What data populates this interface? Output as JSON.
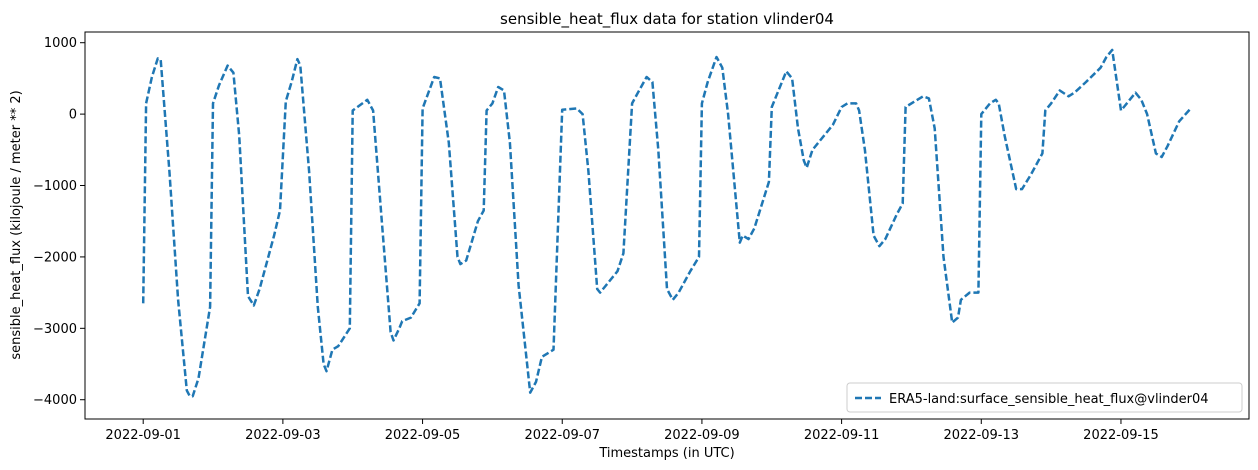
{
  "chart_data": {
    "type": "line",
    "title": "sensible_heat_flux data for station vlinder04",
    "xlabel": "Timestamps (in UTC)",
    "ylabel": "sensible_heat_flux (kilojoule / meter ** 2)",
    "x_ticks": [
      "2022-09-01",
      "2022-09-03",
      "2022-09-05",
      "2022-09-07",
      "2022-09-09",
      "2022-09-11",
      "2022-09-13",
      "2022-09-15"
    ],
    "xlim": [
      "2022-08-31 04:00",
      "2022-09-16 20:00"
    ],
    "y_ticks": [
      1000,
      0,
      -1000,
      -2000,
      -3000,
      -4000
    ],
    "ylim": [
      -4270,
      1150
    ],
    "grid": false,
    "legend_position": "lower-right",
    "series": [
      {
        "name": "ERA5-land:surface_sensible_heat_flux@vlinder04",
        "color": "#1f77b4",
        "linestyle": "dashed",
        "points": [
          [
            "2022-09-01 00:00",
            -2650
          ],
          [
            "2022-09-01 01:00",
            150
          ],
          [
            "2022-09-01 03:00",
            520
          ],
          [
            "2022-09-01 05:00",
            780
          ],
          [
            "2022-09-01 06:00",
            760
          ],
          [
            "2022-09-01 09:00",
            -800
          ],
          [
            "2022-09-01 12:00",
            -2600
          ],
          [
            "2022-09-01 15:00",
            -3870
          ],
          [
            "2022-09-01 16:00",
            -3950
          ],
          [
            "2022-09-01 17:00",
            -3950
          ],
          [
            "2022-09-01 19:00",
            -3700
          ],
          [
            "2022-09-01 23:00",
            -2700
          ],
          [
            "2022-09-02 00:00",
            150
          ],
          [
            "2022-09-02 02:00",
            400
          ],
          [
            "2022-09-02 05:00",
            680
          ],
          [
            "2022-09-02 07:00",
            580
          ],
          [
            "2022-09-02 09:00",
            -300
          ],
          [
            "2022-09-02 12:00",
            -2550
          ],
          [
            "2022-09-02 14:00",
            -2680
          ],
          [
            "2022-09-02 16:00",
            -2450
          ],
          [
            "2022-09-02 21:00",
            -1700
          ],
          [
            "2022-09-02 23:00",
            -1350
          ],
          [
            "2022-09-03 01:00",
            180
          ],
          [
            "2022-09-03 03:00",
            450
          ],
          [
            "2022-09-03 05:00",
            770
          ],
          [
            "2022-09-03 06:00",
            680
          ],
          [
            "2022-09-03 09:00",
            -800
          ],
          [
            "2022-09-03 12:00",
            -2700
          ],
          [
            "2022-09-03 14:00",
            -3500
          ],
          [
            "2022-09-03 15:00",
            -3600
          ],
          [
            "2022-09-03 17:00",
            -3300
          ],
          [
            "2022-09-03 19:00",
            -3250
          ],
          [
            "2022-09-03 23:00",
            -3000
          ],
          [
            "2022-09-04 00:00",
            50
          ],
          [
            "2022-09-04 05:00",
            200
          ],
          [
            "2022-09-04 07:00",
            50
          ],
          [
            "2022-09-04 10:00",
            -1500
          ],
          [
            "2022-09-04 13:00",
            -3050
          ],
          [
            "2022-09-04 14:00",
            -3170
          ],
          [
            "2022-09-04 16:00",
            -3000
          ],
          [
            "2022-09-04 17:00",
            -2900
          ],
          [
            "2022-09-04 20:00",
            -2850
          ],
          [
            "2022-09-04 23:00",
            -2650
          ],
          [
            "2022-09-05 00:00",
            80
          ],
          [
            "2022-09-05 02:00",
            300
          ],
          [
            "2022-09-05 04:00",
            520
          ],
          [
            "2022-09-05 06:00",
            500
          ],
          [
            "2022-09-05 09:00",
            -400
          ],
          [
            "2022-09-05 12:00",
            -2000
          ],
          [
            "2022-09-05 13:00",
            -2100
          ],
          [
            "2022-09-05 15:00",
            -2050
          ],
          [
            "2022-09-05 19:00",
            -1500
          ],
          [
            "2022-09-05 21:00",
            -1350
          ],
          [
            "2022-09-05 22:00",
            50
          ],
          [
            "2022-09-06 00:00",
            150
          ],
          [
            "2022-09-06 02:00",
            380
          ],
          [
            "2022-09-06 04:00",
            330
          ],
          [
            "2022-09-06 06:00",
            -400
          ],
          [
            "2022-09-06 09:00",
            -2400
          ],
          [
            "2022-09-06 13:00",
            -3900
          ],
          [
            "2022-09-06 15:00",
            -3750
          ],
          [
            "2022-09-06 17:00",
            -3400
          ],
          [
            "2022-09-06 21:00",
            -3300
          ],
          [
            "2022-09-07 00:00",
            60
          ],
          [
            "2022-09-07 05:00",
            80
          ],
          [
            "2022-09-07 07:00",
            0
          ],
          [
            "2022-09-07 09:00",
            -800
          ],
          [
            "2022-09-07 12:00",
            -2450
          ],
          [
            "2022-09-07 13:00",
            -2500
          ],
          [
            "2022-09-07 15:00",
            -2400
          ],
          [
            "2022-09-07 19:00",
            -2200
          ],
          [
            "2022-09-07 21:00",
            -1950
          ],
          [
            "2022-09-08 00:00",
            150
          ],
          [
            "2022-09-08 02:00",
            300
          ],
          [
            "2022-09-08 05:00",
            520
          ],
          [
            "2022-09-08 07:00",
            450
          ],
          [
            "2022-09-08 09:00",
            -500
          ],
          [
            "2022-09-08 12:00",
            -2450
          ],
          [
            "2022-09-08 14:00",
            -2600
          ],
          [
            "2022-09-08 16:00",
            -2500
          ],
          [
            "2022-09-08 20:00",
            -2200
          ],
          [
            "2022-09-08 23:00",
            -2000
          ],
          [
            "2022-09-09 00:00",
            150
          ],
          [
            "2022-09-09 02:00",
            450
          ],
          [
            "2022-09-09 05:00",
            800
          ],
          [
            "2022-09-09 07:00",
            650
          ],
          [
            "2022-09-09 09:00",
            0
          ],
          [
            "2022-09-09 13:00",
            -1800
          ],
          [
            "2022-09-09 14:00",
            -1700
          ],
          [
            "2022-09-09 16:00",
            -1750
          ],
          [
            "2022-09-09 18:00",
            -1600
          ],
          [
            "2022-09-09 23:00",
            -950
          ],
          [
            "2022-09-10 00:00",
            100
          ],
          [
            "2022-09-10 02:00",
            300
          ],
          [
            "2022-09-10 05:00",
            600
          ],
          [
            "2022-09-10 07:00",
            500
          ],
          [
            "2022-09-10 09:00",
            -200
          ],
          [
            "2022-09-10 11:00",
            -650
          ],
          [
            "2022-09-10 12:00",
            -750
          ],
          [
            "2022-09-10 14:00",
            -500
          ],
          [
            "2022-09-10 16:00",
            -400
          ],
          [
            "2022-09-10 21:00",
            -150
          ],
          [
            "2022-09-11 00:00",
            100
          ],
          [
            "2022-09-11 02:00",
            150
          ],
          [
            "2022-09-11 05:00",
            150
          ],
          [
            "2022-09-11 06:00",
            50
          ],
          [
            "2022-09-11 08:00",
            -500
          ],
          [
            "2022-09-11 11:00",
            -1700
          ],
          [
            "2022-09-11 13:00",
            -1850
          ],
          [
            "2022-09-11 15:00",
            -1750
          ],
          [
            "2022-09-11 19:00",
            -1400
          ],
          [
            "2022-09-11 21:00",
            -1250
          ],
          [
            "2022-09-11 22:00",
            100
          ],
          [
            "2022-09-12 02:00",
            200
          ],
          [
            "2022-09-12 04:00",
            250
          ],
          [
            "2022-09-12 06:00",
            220
          ],
          [
            "2022-09-12 08:00",
            -200
          ],
          [
            "2022-09-12 11:00",
            -2000
          ],
          [
            "2022-09-12 14:00",
            -2920
          ],
          [
            "2022-09-12 16:00",
            -2850
          ],
          [
            "2022-09-12 17:00",
            -2600
          ],
          [
            "2022-09-12 20:00",
            -2500
          ],
          [
            "2022-09-12 23:00",
            -2500
          ],
          [
            "2022-09-13 00:00",
            0
          ],
          [
            "2022-09-13 03:00",
            150
          ],
          [
            "2022-09-13 05:00",
            200
          ],
          [
            "2022-09-13 06:00",
            150
          ],
          [
            "2022-09-13 08:00",
            -300
          ],
          [
            "2022-09-13 12:00",
            -1050
          ],
          [
            "2022-09-13 14:00",
            -1050
          ],
          [
            "2022-09-13 17:00",
            -850
          ],
          [
            "2022-09-13 21:00",
            -550
          ],
          [
            "2022-09-13 22:00",
            50
          ],
          [
            "2022-09-14 00:00",
            150
          ],
          [
            "2022-09-14 03:00",
            330
          ],
          [
            "2022-09-14 06:00",
            250
          ],
          [
            "2022-09-14 08:00",
            300
          ],
          [
            "2022-09-14 12:00",
            450
          ],
          [
            "2022-09-14 17:00",
            650
          ],
          [
            "2022-09-14 19:00",
            800
          ],
          [
            "2022-09-14 21:00",
            900
          ],
          [
            "2022-09-15 00:00",
            50
          ],
          [
            "2022-09-15 01:00",
            100
          ],
          [
            "2022-09-15 03:00",
            200
          ],
          [
            "2022-09-15 05:00",
            300
          ],
          [
            "2022-09-15 07:00",
            200
          ],
          [
            "2022-09-15 09:00",
            0
          ],
          [
            "2022-09-15 12:00",
            -550
          ],
          [
            "2022-09-15 14:00",
            -600
          ],
          [
            "2022-09-15 16:00",
            -450
          ],
          [
            "2022-09-15 20:00",
            -100
          ],
          [
            "2022-09-16 00:00",
            80
          ]
        ]
      }
    ]
  }
}
